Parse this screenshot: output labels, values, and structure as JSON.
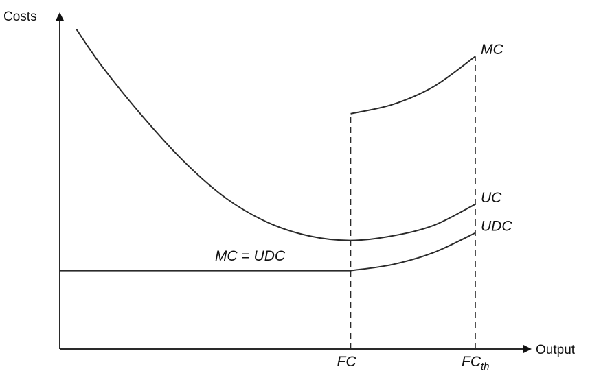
{
  "chart_data": {
    "type": "line",
    "title": "",
    "ylabel": "Costs",
    "xlabel": "Output",
    "grid": false,
    "legend": "none",
    "xlim": [
      0,
      10
    ],
    "ylim": [
      0,
      10
    ],
    "x_ticks": [
      {
        "label": "FC",
        "subscript": "",
        "x": 7.0
      },
      {
        "label": "FC",
        "subscript": "th",
        "x": 10.0
      }
    ],
    "series": [
      {
        "name": "MC",
        "points": [
          [
            7.0,
            7.8
          ],
          [
            8.0,
            8.1
          ],
          [
            9.0,
            8.7
          ],
          [
            10.0,
            9.7
          ]
        ]
      },
      {
        "name": "UC",
        "points": [
          [
            0.4,
            10.6
          ],
          [
            1.0,
            9.4
          ],
          [
            2.0,
            7.7
          ],
          [
            3.0,
            6.2
          ],
          [
            4.0,
            5.0
          ],
          [
            5.0,
            4.2
          ],
          [
            6.0,
            3.75
          ],
          [
            7.0,
            3.6
          ],
          [
            8.0,
            3.75
          ],
          [
            9.0,
            4.1
          ],
          [
            10.0,
            4.8
          ]
        ]
      },
      {
        "name": "UDC",
        "points": [
          [
            0.0,
            2.6
          ],
          [
            7.0,
            2.6
          ],
          [
            8.0,
            2.8
          ],
          [
            9.0,
            3.2
          ],
          [
            10.0,
            3.85
          ]
        ]
      }
    ],
    "annotations": [
      {
        "text": "MC = UDC",
        "x": 3.9,
        "y": 2.75
      }
    ],
    "reference_lines": [
      {
        "x": 7.0,
        "style": "dashed"
      },
      {
        "x": 10.0,
        "style": "dashed"
      }
    ]
  }
}
